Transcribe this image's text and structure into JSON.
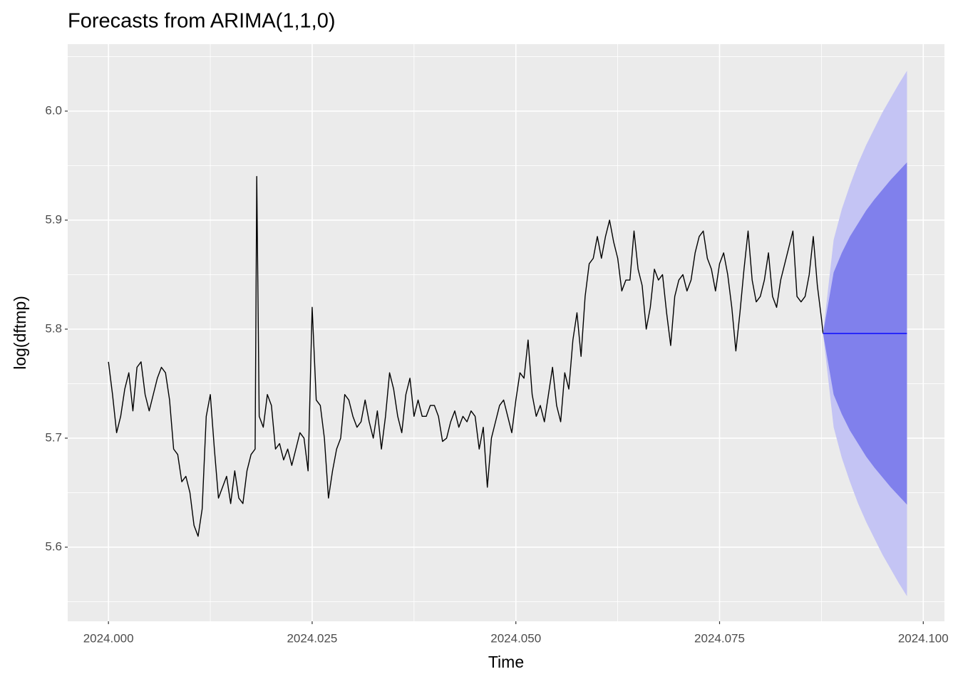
{
  "chart_data": {
    "type": "line",
    "title": "Forecasts from ARIMA(1,1,0)",
    "x_label": "Time",
    "y_label": "log(dftmp)",
    "xlim": [
      2023.995,
      2024.1026
    ],
    "ylim": [
      5.532,
      6.0614
    ],
    "xticks": [
      {
        "value": 2024,
        "label": "2024.000"
      },
      {
        "value": 2024.025,
        "label": "2024.025"
      },
      {
        "value": 2024.05,
        "label": "2024.050"
      },
      {
        "value": 2024.075,
        "label": "2024.075"
      },
      {
        "value": 2024.1,
        "label": "2024.100"
      }
    ],
    "yticks": [
      5.6,
      5.7,
      5.8,
      5.9,
      {
        "value": 6,
        "label": "6.0"
      }
    ],
    "grid": true,
    "color": "#000000",
    "x": [
      2024.0,
      2024.0005,
      2024.001,
      2024.0015,
      2024.002,
      2024.0025,
      2024.003,
      2024.0035,
      2024.004,
      2024.0045,
      2024.005,
      2024.0055,
      2024.006,
      2024.0065,
      2024.007,
      2024.0075,
      2024.008,
      2024.0085,
      2024.009,
      2024.0095,
      2024.01,
      2024.0105,
      2024.011,
      2024.0115,
      2024.012,
      2024.0125,
      2024.013,
      2024.0135,
      2024.014,
      2024.0145,
      2024.015,
      2024.0155,
      2024.016,
      2024.0165,
      2024.017,
      2024.0175,
      2024.018,
      2024.0182,
      2024.0185,
      2024.019,
      2024.0195,
      2024.02,
      2024.0205,
      2024.021,
      2024.0215,
      2024.022,
      2024.0225,
      2024.023,
      2024.0235,
      2024.024,
      2024.0245,
      2024.025,
      2024.0255,
      2024.026,
      2024.0265,
      2024.027,
      2024.0275,
      2024.028,
      2024.0285,
      2024.029,
      2024.0295,
      2024.03,
      2024.0305,
      2024.031,
      2024.0315,
      2024.032,
      2024.0325,
      2024.033,
      2024.0335,
      2024.034,
      2024.0345,
      2024.035,
      2024.0355,
      2024.036,
      2024.0365,
      2024.037,
      2024.0375,
      2024.038,
      2024.0385,
      2024.039,
      2024.0395,
      2024.04,
      2024.0405,
      2024.041,
      2024.0415,
      2024.042,
      2024.0425,
      2024.043,
      2024.0435,
      2024.044,
      2024.0445,
      2024.045,
      2024.0455,
      2024.046,
      2024.0465,
      2024.047,
      2024.0475,
      2024.048,
      2024.0485,
      2024.049,
      2024.0495,
      2024.05,
      2024.0505,
      2024.051,
      2024.0515,
      2024.052,
      2024.0525,
      2024.053,
      2024.0535,
      2024.054,
      2024.0545,
      2024.055,
      2024.0555,
      2024.056,
      2024.0565,
      2024.057,
      2024.0575,
      2024.058,
      2024.0585,
      2024.059,
      2024.0595,
      2024.06,
      2024.0605,
      2024.061,
      2024.0615,
      2024.062,
      2024.0625,
      2024.063,
      2024.0635,
      2024.064,
      2024.0645,
      2024.065,
      2024.0655,
      2024.066,
      2024.0665,
      2024.067,
      2024.0675,
      2024.068,
      2024.0685,
      2024.069,
      2024.0695,
      2024.07,
      2024.0705,
      2024.071,
      2024.0715,
      2024.072,
      2024.0725,
      2024.073,
      2024.0735,
      2024.074,
      2024.0745,
      2024.075,
      2024.0755,
      2024.076,
      2024.0765,
      2024.077,
      2024.0775,
      2024.078,
      2024.0785,
      2024.079,
      2024.0795,
      2024.08,
      2024.0805,
      2024.081,
      2024.0815,
      2024.082,
      2024.0825,
      2024.083,
      2024.0835,
      2024.084,
      2024.0845,
      2024.085,
      2024.0855,
      2024.086,
      2024.0865,
      2024.087,
      2024.0875,
      2024.0877
    ],
    "values": [
      5.77,
      5.74,
      5.705,
      5.72,
      5.745,
      5.76,
      5.725,
      5.765,
      5.77,
      5.74,
      5.725,
      5.74,
      5.755,
      5.765,
      5.76,
      5.735,
      5.69,
      5.685,
      5.66,
      5.665,
      5.65,
      5.62,
      5.61,
      5.635,
      5.72,
      5.74,
      5.69,
      5.645,
      5.655,
      5.665,
      5.64,
      5.67,
      5.645,
      5.64,
      5.67,
      5.685,
      5.69,
      5.94,
      5.72,
      5.71,
      5.74,
      5.73,
      5.69,
      5.695,
      5.68,
      5.69,
      5.675,
      5.69,
      5.705,
      5.7,
      5.67,
      5.82,
      5.735,
      5.73,
      5.7,
      5.645,
      5.67,
      5.69,
      5.7,
      5.74,
      5.735,
      5.72,
      5.71,
      5.715,
      5.735,
      5.715,
      5.7,
      5.725,
      5.69,
      5.72,
      5.76,
      5.745,
      5.72,
      5.705,
      5.74,
      5.755,
      5.72,
      5.735,
      5.72,
      5.72,
      5.73,
      5.73,
      5.72,
      5.697,
      5.7,
      5.715,
      5.725,
      5.71,
      5.72,
      5.715,
      5.725,
      5.72,
      5.69,
      5.71,
      5.655,
      5.7,
      5.715,
      5.73,
      5.735,
      5.72,
      5.705,
      5.735,
      5.76,
      5.755,
      5.79,
      5.74,
      5.72,
      5.73,
      5.715,
      5.74,
      5.765,
      5.73,
      5.715,
      5.76,
      5.745,
      5.79,
      5.815,
      5.775,
      5.83,
      5.86,
      5.865,
      5.885,
      5.865,
      5.885,
      5.9,
      5.88,
      5.865,
      5.835,
      5.845,
      5.845,
      5.89,
      5.855,
      5.84,
      5.8,
      5.82,
      5.855,
      5.845,
      5.85,
      5.815,
      5.785,
      5.83,
      5.845,
      5.85,
      5.835,
      5.845,
      5.87,
      5.885,
      5.89,
      5.865,
      5.855,
      5.835,
      5.86,
      5.87,
      5.85,
      5.82,
      5.78,
      5.815,
      5.855,
      5.89,
      5.845,
      5.825,
      5.83,
      5.845,
      5.87,
      5.83,
      5.82,
      5.845,
      5.86,
      5.875,
      5.89,
      5.83,
      5.825,
      5.83,
      5.85,
      5.885,
      5.84,
      5.81,
      5.796
    ],
    "forecast": {
      "x": [
        2024.0877,
        2024.089,
        2024.09,
        2024.091,
        2024.092,
        2024.093,
        2024.094,
        2024.095,
        2024.096,
        2024.097,
        2024.098
      ],
      "mean": [
        5.796,
        5.796,
        5.796,
        5.796,
        5.796,
        5.796,
        5.796,
        5.796,
        5.796,
        5.796,
        5.796
      ],
      "lo80": [
        5.796,
        5.74,
        5.722,
        5.707,
        5.695,
        5.683,
        5.673,
        5.664,
        5.655,
        5.647,
        5.639
      ],
      "hi80": [
        5.796,
        5.852,
        5.87,
        5.885,
        5.897,
        5.909,
        5.919,
        5.928,
        5.937,
        5.945,
        5.953
      ],
      "lo95": [
        5.796,
        5.71,
        5.682,
        5.66,
        5.64,
        5.623,
        5.608,
        5.593,
        5.58,
        5.567,
        5.555
      ],
      "hi95": [
        5.796,
        5.882,
        5.91,
        5.932,
        5.952,
        5.969,
        5.984,
        5.999,
        6.012,
        6.025,
        6.037
      ],
      "color": "#0000ff",
      "color80": "#8080ec",
      "color95": "#c4c4f4"
    }
  }
}
